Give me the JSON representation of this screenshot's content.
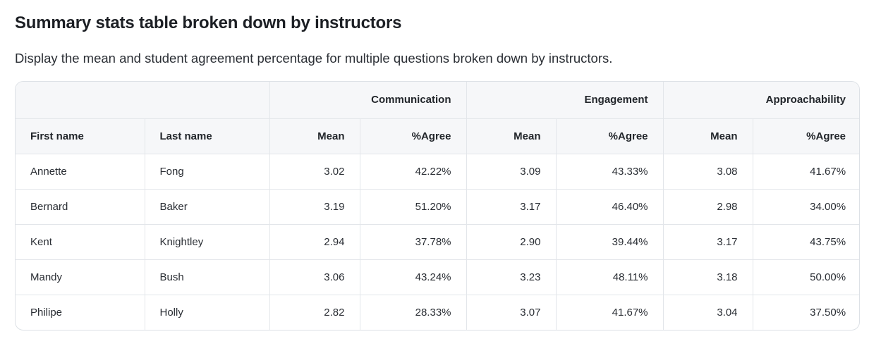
{
  "heading": {
    "title": "Summary stats table broken down by instructors",
    "description": "Display the mean and student agreement percentage for multiple questions broken down by instructors."
  },
  "table": {
    "groups": [
      "Communication",
      "Engagement",
      "Approachability"
    ],
    "columns": {
      "first_name": "First name",
      "last_name": "Last name",
      "mean": "Mean",
      "agree": "%Agree"
    },
    "rows": [
      {
        "first": "Annette",
        "last": "Fong",
        "values": [
          "3.02",
          "42.22%",
          "3.09",
          "43.33%",
          "3.08",
          "41.67%"
        ]
      },
      {
        "first": "Bernard",
        "last": "Baker",
        "values": [
          "3.19",
          "51.20%",
          "3.17",
          "46.40%",
          "2.98",
          "34.00%"
        ]
      },
      {
        "first": "Kent",
        "last": "Knightley",
        "values": [
          "2.94",
          "37.78%",
          "2.90",
          "39.44%",
          "3.17",
          "43.75%"
        ]
      },
      {
        "first": "Mandy",
        "last": "Bush",
        "values": [
          "3.06",
          "43.24%",
          "3.23",
          "48.11%",
          "3.18",
          "50.00%"
        ]
      },
      {
        "first": "Philipe",
        "last": "Holly",
        "values": [
          "2.82",
          "28.33%",
          "3.07",
          "41.67%",
          "3.04",
          "37.50%"
        ]
      }
    ]
  }
}
